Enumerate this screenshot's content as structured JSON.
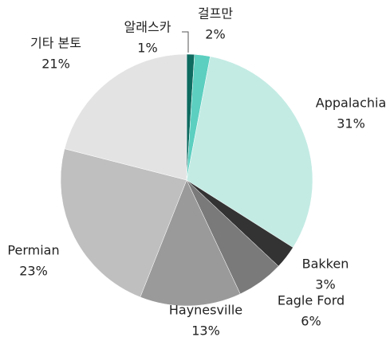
{
  "chart_data": {
    "type": "pie",
    "categories": [
      "알래스카",
      "걸프만",
      "Appalachia",
      "Bakken",
      "Eagle Ford",
      "Haynesville",
      "Permian",
      "기타 본토"
    ],
    "values": [
      1,
      2,
      31,
      3,
      6,
      13,
      23,
      21
    ],
    "value_labels": [
      "1%",
      "2%",
      "31%",
      "3%",
      "6%",
      "13%",
      "23%",
      "21%"
    ],
    "colors": [
      "#0e6b60",
      "#5ccfc0",
      "#c3ebe4",
      "#333333",
      "#7a7a7a",
      "#9a9a9a",
      "#bfbfbf",
      "#e3e3e3"
    ]
  }
}
